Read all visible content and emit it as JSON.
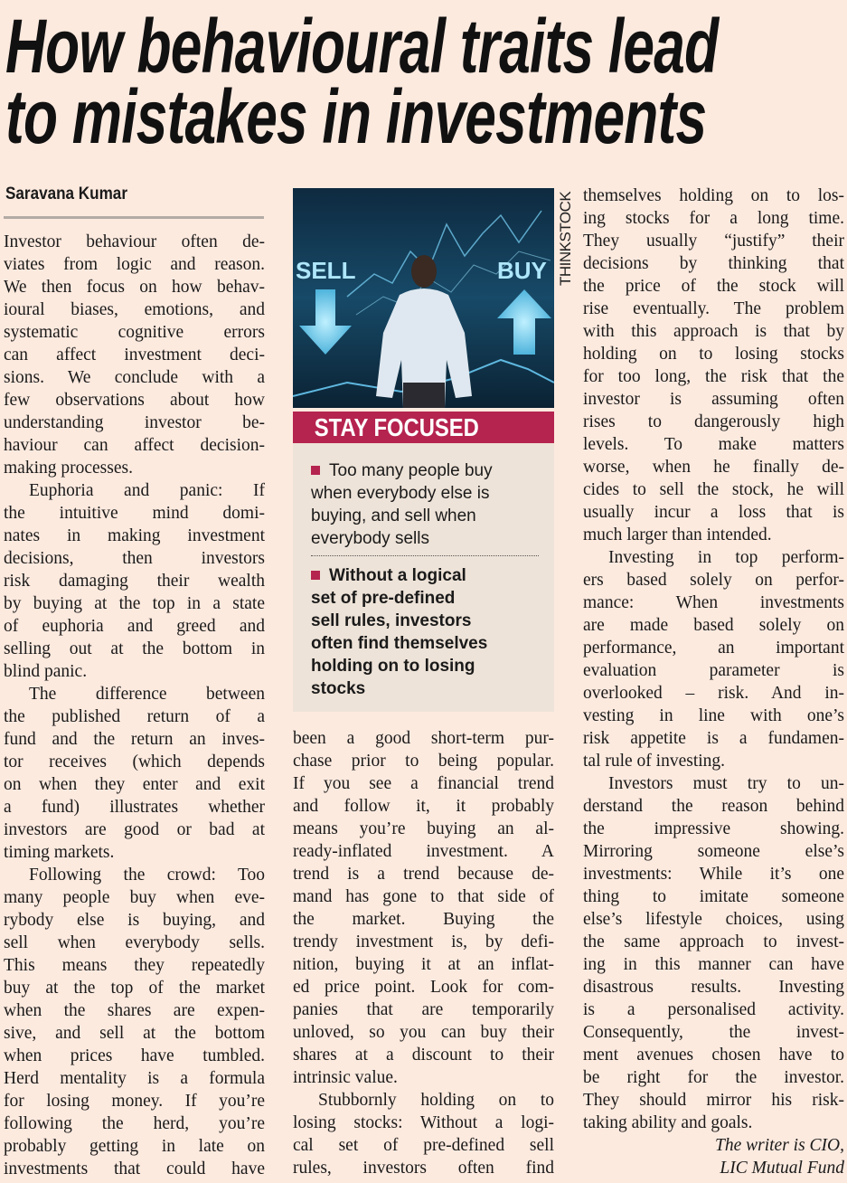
{
  "headline": [
    "How behavioural traits lead",
    "to mistakes in investments"
  ],
  "author": "Saravana Kumar",
  "photo": {
    "sell_label": "SELL",
    "buy_label": "BUY",
    "credit": "THINKSTOCK"
  },
  "sidebar": {
    "title": "STAY FOCUSED",
    "accent_color": "#b5234f",
    "items": [
      {
        "lines": [
          "Too many people buy",
          "when everybody else is",
          "buying, and sell when",
          "everybody sells"
        ],
        "bold": false
      },
      {
        "lines": [
          "Without a logical",
          "set of pre-defined",
          "sell rules, investors",
          "often find themselves",
          "holding on to losing",
          "stocks"
        ],
        "bold": true
      }
    ]
  },
  "columns": [
    {
      "paragraphs": [
        {
          "indent": false,
          "end": true,
          "lines": [
            "Investor behaviour often de-",
            "viates from logic and reason.",
            "We then focus on how behav-",
            "ioural biases, emotions, and",
            "systematic cognitive errors",
            "can affect investment deci-",
            "sions. We conclude with a",
            "few observations about how",
            "understanding investor be-",
            "haviour can affect decision-",
            "making processes."
          ]
        },
        {
          "indent": true,
          "end": true,
          "lines": [
            "Euphoria and panic: If",
            "the intuitive mind domi-",
            "nates in making investment",
            "decisions, then investors",
            "risk damaging their wealth",
            "by buying at the top in a state",
            "of euphoria and greed and",
            "selling out at the bottom in",
            "blind panic."
          ]
        },
        {
          "indent": true,
          "end": true,
          "lines": [
            "The difference between",
            "the published return of a",
            "fund and the return an inves-",
            "tor receives (which depends",
            "on when they enter and exit",
            "a fund) illustrates whether",
            "investors are good or bad at",
            "timing markets."
          ]
        },
        {
          "indent": true,
          "end": false,
          "lines": [
            "Following the crowd: Too",
            "many people buy when eve-",
            "rybody else is buying, and",
            "sell when everybody sells.",
            "This means they repeatedly",
            "buy at the top of the market",
            "when the shares are expen-",
            "sive, and sell at the bottom",
            "when prices have tumbled.",
            "Herd mentality is a formula",
            "for losing money. If you’re",
            "following the herd, you’re",
            "probably getting in late on",
            "investments that could have"
          ]
        }
      ]
    },
    {
      "paragraphs": [
        {
          "indent": false,
          "end": true,
          "lines": [
            "been a good short-term pur-",
            "chase prior to being popular.",
            "If you see a financial trend",
            "and follow it, it probably",
            "means you’re buying an al-",
            "ready-inflated investment. A",
            "trend is a trend because de-",
            "mand has gone to that side of",
            "the market. Buying the",
            "trendy investment is, by defi-",
            "nition, buying it at an inflat-",
            "ed price point. Look for com-",
            "panies that are temporarily",
            "unloved, so you can buy their",
            "shares at a discount to their",
            "intrinsic value."
          ]
        },
        {
          "indent": true,
          "end": false,
          "lines": [
            "Stubbornly holding on to",
            "losing stocks: Without a logi-",
            "cal set of pre-defined sell",
            "rules, investors often find"
          ]
        }
      ]
    },
    {
      "paragraphs": [
        {
          "indent": false,
          "end": true,
          "lines": [
            "themselves holding on to los-",
            "ing stocks for a long time.",
            "They usually “justify” their",
            "decisions by thinking that",
            "the price of the stock will",
            "rise eventually. The problem",
            "with this approach is that by",
            "holding on to losing stocks",
            "for too long, the risk that the",
            "investor is assuming often",
            "rises to dangerously high",
            "levels. To make matters",
            "worse, when he finally de-",
            "cides to sell the stock, he will",
            "usually incur a loss that is",
            "much larger than intended."
          ]
        },
        {
          "indent": true,
          "end": true,
          "lines": [
            "Investing in top perform-",
            "ers based solely on perfor-",
            "mance: When investments",
            "are made based solely on",
            "performance, an important",
            "evaluation parameter is",
            "overlooked – risk. And in-",
            "vesting in line with one’s",
            "risk appetite is a fundamen-",
            "tal rule of investing."
          ]
        },
        {
          "indent": true,
          "end": true,
          "lines": [
            "Investors must try to un-",
            "derstand the reason behind",
            "the impressive showing.",
            "Mirroring someone else’s",
            "investments: While it’s one",
            "thing to imitate someone",
            "else’s lifestyle choices, using",
            "the same approach to invest-",
            "ing in this manner can have",
            "disastrous results. Investing",
            "is a personalised activity.",
            "Consequently, the invest-",
            "ment avenues chosen have to",
            "be right for the investor.",
            "They should mirror his risk-",
            "taking ability and goals."
          ]
        }
      ]
    }
  ],
  "byline": [
    "The writer is CIO,",
    "LIC Mutual Fund"
  ]
}
